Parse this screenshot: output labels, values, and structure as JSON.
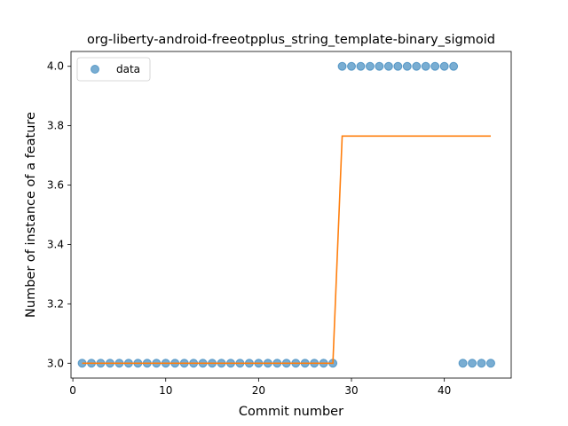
{
  "chart_data": {
    "type": "scatter",
    "title": "org-liberty-android-freeotpplus_string_template-binary_sigmoid",
    "xlabel": "Commit number",
    "ylabel": "Number of instance of a feature",
    "xlim": [
      -0.2,
      47.2
    ],
    "ylim": [
      2.95,
      4.05
    ],
    "xticks": [
      0,
      10,
      20,
      30,
      40
    ],
    "yticks": [
      3.0,
      3.2,
      3.4,
      3.6,
      3.8,
      4.0
    ],
    "ytick_labels": [
      "3.0",
      "3.2",
      "3.4",
      "3.6",
      "3.8",
      "4.0"
    ],
    "grid": false,
    "legend": {
      "position": "top-left",
      "entries": [
        "data"
      ]
    },
    "series": [
      {
        "name": "data",
        "kind": "scatter",
        "color": "#1f77b4",
        "x": [
          1,
          2,
          3,
          4,
          5,
          6,
          7,
          8,
          9,
          10,
          11,
          12,
          13,
          14,
          15,
          16,
          17,
          18,
          19,
          20,
          21,
          22,
          23,
          24,
          25,
          26,
          27,
          28,
          29,
          30,
          31,
          32,
          33,
          34,
          35,
          36,
          37,
          38,
          39,
          40,
          41,
          42,
          43,
          44,
          45
        ],
        "y": [
          3,
          3,
          3,
          3,
          3,
          3,
          3,
          3,
          3,
          3,
          3,
          3,
          3,
          3,
          3,
          3,
          3,
          3,
          3,
          3,
          3,
          3,
          3,
          3,
          3,
          3,
          3,
          3,
          4,
          4,
          4,
          4,
          4,
          4,
          4,
          4,
          4,
          4,
          4,
          4,
          4,
          3,
          3,
          3,
          3
        ]
      },
      {
        "kind": "line",
        "color": "#ff7f0e",
        "x": [
          1,
          28,
          29,
          45
        ],
        "y": [
          3.0,
          3.0,
          3.765,
          3.765
        ]
      }
    ]
  }
}
